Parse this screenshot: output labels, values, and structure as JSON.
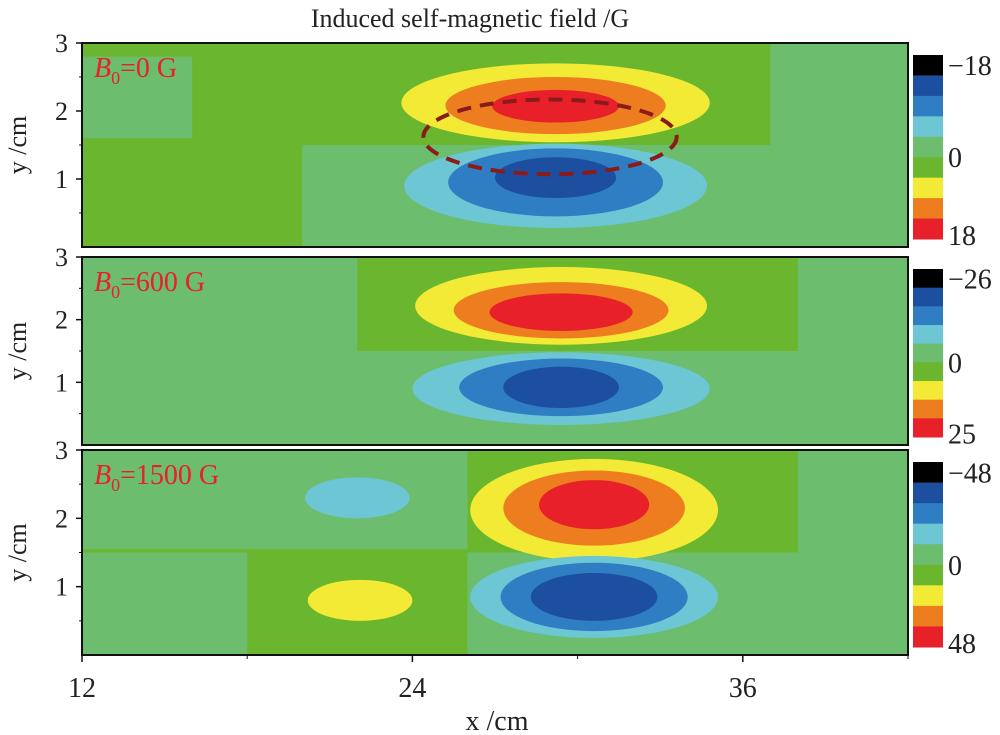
{
  "chart_data": {
    "type": "heatmap",
    "title": "Induced self-magnetic field /G",
    "xlabel": "x /cm",
    "ylabel": "y /cm",
    "xlim": [
      12,
      42
    ],
    "ylim": [
      0,
      3
    ],
    "xticks": [
      12,
      24,
      36
    ],
    "xtick_labels": [
      "12",
      "24",
      "36"
    ],
    "yticks": [
      1,
      2,
      3
    ],
    "ytick_labels": [
      "1",
      "2",
      "3"
    ],
    "level_colors": [
      "#000000",
      "#1c4f9f",
      "#2f7dc3",
      "#6cc6d3",
      "#6dbd6e",
      "#6ab72f",
      "#f2ea35",
      "#ee7d1f",
      "#e8202a"
    ],
    "panels": [
      {
        "label_prefix": "B",
        "label_sub": "0",
        "label_value": "=0 G",
        "colorbar_labels": [
          "−18",
          "0",
          "18"
        ],
        "background_regions": [
          [
            20,
            37,
            0,
            1.5
          ],
          [
            12,
            16,
            1.6,
            2.8
          ],
          [
            37,
            42,
            0,
            3
          ]
        ],
        "features": [
          {
            "x": 29.2,
            "y": 2.12,
            "rx": 5.6,
            "ry": 0.58,
            "level": 6
          },
          {
            "x": 29.2,
            "y": 2.08,
            "rx": 4.0,
            "ry": 0.42,
            "level": 7
          },
          {
            "x": 29.2,
            "y": 2.07,
            "rx": 2.3,
            "ry": 0.24,
            "level": 8
          },
          {
            "x": 29.2,
            "y": 0.9,
            "rx": 5.5,
            "ry": 0.62,
            "level": 3
          },
          {
            "x": 29.2,
            "y": 0.95,
            "rx": 3.9,
            "ry": 0.5,
            "level": 2
          },
          {
            "x": 29.2,
            "y": 1.02,
            "rx": 2.2,
            "ry": 0.3,
            "level": 1
          }
        ],
        "dashed_ellipse": {
          "x": 29.0,
          "y": 1.62,
          "rx": 4.6,
          "ry": 0.55
        }
      },
      {
        "label_prefix": "B",
        "label_sub": "0",
        "label_value": "=600 G",
        "colorbar_labels": [
          "−26",
          "0",
          "25"
        ],
        "background_regions": [
          [
            12,
            22,
            0,
            3
          ],
          [
            22,
            38,
            0,
            1.5
          ],
          [
            38,
            42,
            0,
            3
          ]
        ],
        "features": [
          {
            "x": 29.4,
            "y": 2.22,
            "rx": 5.3,
            "ry": 0.62,
            "level": 6
          },
          {
            "x": 29.4,
            "y": 2.15,
            "rx": 3.9,
            "ry": 0.45,
            "level": 7
          },
          {
            "x": 29.4,
            "y": 2.12,
            "rx": 2.6,
            "ry": 0.3,
            "level": 8
          },
          {
            "x": 29.4,
            "y": 0.9,
            "rx": 5.4,
            "ry": 0.58,
            "level": 3
          },
          {
            "x": 29.4,
            "y": 0.92,
            "rx": 3.7,
            "ry": 0.46,
            "level": 2
          },
          {
            "x": 29.4,
            "y": 0.92,
            "rx": 2.1,
            "ry": 0.33,
            "level": 1
          }
        ]
      },
      {
        "label_prefix": "B",
        "label_sub": "0",
        "label_value": "=1500 G",
        "colorbar_labels": [
          "−48",
          "0",
          "48"
        ],
        "background_regions": [
          [
            12,
            26,
            1.55,
            3
          ],
          [
            26,
            38,
            0,
            1.5
          ],
          [
            12,
            18,
            0,
            1.5
          ],
          [
            38,
            42,
            0,
            3
          ]
        ],
        "features": [
          {
            "x": 30.6,
            "y": 2.12,
            "rx": 4.5,
            "ry": 0.75,
            "level": 6
          },
          {
            "x": 30.6,
            "y": 2.15,
            "rx": 3.3,
            "ry": 0.55,
            "level": 7
          },
          {
            "x": 30.6,
            "y": 2.2,
            "rx": 2.0,
            "ry": 0.36,
            "level": 8
          },
          {
            "x": 30.6,
            "y": 0.85,
            "rx": 4.5,
            "ry": 0.6,
            "level": 3
          },
          {
            "x": 30.6,
            "y": 0.85,
            "rx": 3.4,
            "ry": 0.5,
            "level": 2
          },
          {
            "x": 30.6,
            "y": 0.85,
            "rx": 2.3,
            "ry": 0.35,
            "level": 1
          },
          {
            "x": 22.0,
            "y": 2.3,
            "rx": 1.9,
            "ry": 0.3,
            "level": 3
          },
          {
            "x": 22.1,
            "y": 0.8,
            "rx": 1.9,
            "ry": 0.3,
            "level": 6
          }
        ]
      }
    ]
  }
}
